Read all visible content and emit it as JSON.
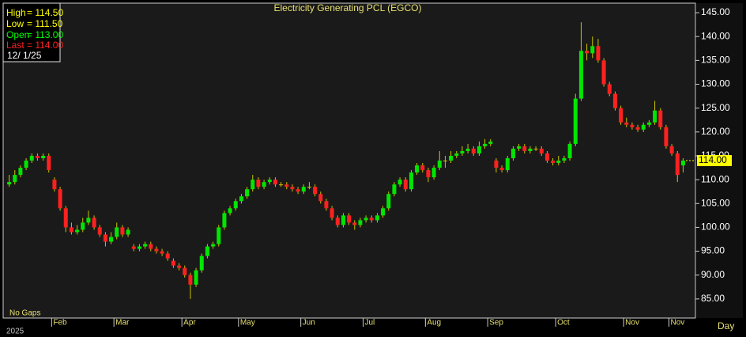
{
  "chart_data": {
    "type": "candlestick",
    "title": "Electricity Generating PCL (EGCO)",
    "info": {
      "high": {
        "label": "High",
        "value": "= 114.50"
      },
      "low": {
        "label": "Low",
        "value": "= 111.50"
      },
      "open": {
        "label": "Open",
        "value": "= 113.00"
      },
      "last": {
        "label": "Last",
        "value": "= 114.00"
      },
      "date": "12/  1/25"
    },
    "gaps_note": "No Gaps",
    "year": "2025",
    "period": "Day",
    "last_label": "114.00",
    "ylim": [
      81,
      147
    ],
    "yticks": [
      {
        "value": 85,
        "label": "85.00"
      },
      {
        "value": 90,
        "label": "90.00"
      },
      {
        "value": 95,
        "label": "95.00"
      },
      {
        "value": 100,
        "label": "100.00"
      },
      {
        "value": 105,
        "label": "105.00"
      },
      {
        "value": 110,
        "label": "110.00"
      },
      {
        "value": 115,
        "label": "115.00"
      },
      {
        "value": 120,
        "label": "120.00"
      },
      {
        "value": 125,
        "label": "125.00"
      },
      {
        "value": 130,
        "label": "130.00"
      },
      {
        "value": 135,
        "label": "135.00"
      },
      {
        "value": 140,
        "label": "140.00"
      },
      {
        "value": 145,
        "label": "145.00"
      }
    ],
    "xticks": [
      {
        "value": 8,
        "label": "Feb"
      },
      {
        "value": 19,
        "label": "Mar"
      },
      {
        "value": 31,
        "label": "Apr"
      },
      {
        "value": 41,
        "label": "May"
      },
      {
        "value": 52,
        "label": "Jun"
      },
      {
        "value": 63,
        "label": "Jul"
      },
      {
        "value": 74,
        "label": "Aug"
      },
      {
        "value": 85,
        "label": "Sep"
      },
      {
        "value": 97,
        "label": "Oct"
      },
      {
        "value": 109,
        "label": "Nov"
      },
      {
        "value": 117,
        "label": "Nov"
      }
    ],
    "up_color": "#00e600",
    "down_color": "#ff2020",
    "wick_color": "#c8c400",
    "candles": [
      [
        109,
        111,
        108.5,
        109.5
      ],
      [
        109.5,
        112,
        109,
        111
      ],
      [
        111,
        113,
        110.5,
        112.5
      ],
      [
        112.5,
        114.5,
        112,
        114
      ],
      [
        114,
        115.5,
        113.5,
        115
      ],
      [
        115,
        115.5,
        114,
        114.5
      ],
      [
        114.5,
        115.5,
        114,
        115
      ],
      [
        115,
        115.5,
        111.5,
        112
      ],
      [
        110,
        110.5,
        107.5,
        108
      ],
      [
        108,
        108.5,
        103.5,
        104
      ],
      [
        104,
        104.5,
        99,
        100
      ],
      [
        100,
        101,
        98.5,
        99
      ],
      [
        99,
        100.5,
        98.5,
        99.5
      ],
      [
        99.5,
        102,
        99,
        101
      ],
      [
        101,
        103.5,
        100.5,
        102
      ],
      [
        102,
        102.5,
        99.5,
        100
      ],
      [
        100,
        100.5,
        98,
        98.5
      ],
      [
        98.5,
        99,
        96,
        97
      ],
      [
        97,
        99,
        96.5,
        98
      ],
      [
        98,
        101,
        97.5,
        100
      ],
      [
        100,
        100.5,
        98,
        98.5
      ],
      [
        98.5,
        100,
        98,
        99.5
      ],
      [
        96,
        96.5,
        95,
        95.5
      ],
      [
        95.5,
        96.5,
        95,
        96
      ],
      [
        96,
        97,
        95.5,
        96.5
      ],
      [
        96.5,
        97,
        95,
        95.5
      ],
      [
        95.5,
        96,
        94.5,
        95
      ],
      [
        95,
        95.5,
        94,
        94.5
      ],
      [
        94.5,
        95,
        93,
        93.5
      ],
      [
        93,
        93.5,
        91.5,
        92
      ],
      [
        92,
        92.5,
        91,
        91.5
      ],
      [
        91.5,
        92,
        89.5,
        90
      ],
      [
        90,
        90.5,
        85,
        88
      ],
      [
        88,
        91.5,
        87.5,
        91
      ],
      [
        91,
        94.5,
        90.5,
        94
      ],
      [
        94,
        96.5,
        93.5,
        96
      ],
      [
        96,
        97,
        95.5,
        96.5
      ],
      [
        96.5,
        100.5,
        96,
        100
      ],
      [
        100,
        103.5,
        99.5,
        103
      ],
      [
        103,
        104.5,
        102.5,
        104
      ],
      [
        104,
        106,
        103.5,
        105.5
      ],
      [
        105.5,
        107,
        105,
        106.5
      ],
      [
        106.5,
        108.5,
        106,
        108
      ],
      [
        108,
        111,
        107.5,
        110
      ],
      [
        110,
        110.5,
        108,
        108.5
      ],
      [
        108.5,
        110,
        108,
        109.5
      ],
      [
        109.5,
        110.5,
        109,
        110
      ],
      [
        110,
        110.5,
        108.5,
        109
      ],
      [
        109,
        109.5,
        108.5,
        109
      ],
      [
        109,
        109.5,
        108,
        108.5
      ],
      [
        108.5,
        109,
        107.5,
        108
      ],
      [
        108,
        108.5,
        107,
        107.5
      ],
      [
        107.5,
        109,
        107,
        108.5
      ],
      [
        108.5,
        109.5,
        108,
        108.5
      ],
      [
        108.5,
        109,
        106.5,
        107
      ],
      [
        107,
        107.5,
        105,
        105.5
      ],
      [
        105.5,
        106,
        103.5,
        104
      ],
      [
        104,
        104.5,
        101.5,
        102
      ],
      [
        102,
        102.5,
        100,
        100.5
      ],
      [
        100.5,
        103,
        100,
        102.5
      ],
      [
        102.5,
        103,
        100.5,
        101
      ],
      [
        101,
        101.5,
        99.5,
        100.5
      ],
      [
        100.5,
        102,
        100,
        101.5
      ],
      [
        101.5,
        102.5,
        101,
        102
      ],
      [
        102,
        102.5,
        101,
        101.5
      ],
      [
        101.5,
        103,
        101,
        102.5
      ],
      [
        102.5,
        104.5,
        102,
        104
      ],
      [
        104,
        107.5,
        103.5,
        107
      ],
      [
        107,
        109.5,
        106.5,
        109
      ],
      [
        109,
        110.5,
        108.5,
        110
      ],
      [
        110,
        110.5,
        107.5,
        108
      ],
      [
        108,
        112,
        107.5,
        111.5
      ],
      [
        111.5,
        113.5,
        111,
        113
      ],
      [
        113,
        113.5,
        111.5,
        112
      ],
      [
        112,
        112.5,
        109.5,
        110.5
      ],
      [
        110.5,
        113,
        110,
        112.5
      ],
      [
        112.5,
        116,
        112,
        114
      ],
      [
        114,
        115,
        112.5,
        114
      ],
      [
        114,
        116,
        113.5,
        115
      ],
      [
        115,
        116,
        114.5,
        115.5
      ],
      [
        115.5,
        117,
        115,
        116
      ],
      [
        116,
        117.5,
        115.5,
        116.5
      ],
      [
        116.5,
        117,
        115,
        115.5
      ],
      [
        115.5,
        118,
        115,
        117
      ],
      [
        117,
        118.5,
        116.5,
        117.5
      ],
      [
        117.5,
        118.5,
        117,
        118
      ],
      [
        114,
        114.5,
        111.5,
        112.5
      ],
      [
        112.5,
        113,
        111.5,
        112
      ],
      [
        112,
        115,
        111.5,
        114.5
      ],
      [
        114.5,
        117,
        114,
        116.5
      ],
      [
        116.5,
        117.5,
        116,
        117
      ],
      [
        117,
        117.5,
        115.5,
        116
      ],
      [
        116,
        117,
        115.5,
        116.5
      ],
      [
        116.5,
        117,
        116,
        116.5
      ],
      [
        116.5,
        117,
        115,
        115.5
      ],
      [
        115.5,
        116,
        113.5,
        114
      ],
      [
        114,
        114.5,
        113,
        113.5
      ],
      [
        113.5,
        115,
        113,
        114
      ],
      [
        114,
        115,
        113.5,
        114.5
      ],
      [
        114.5,
        118,
        114,
        117.5
      ],
      [
        117.5,
        128,
        117,
        127
      ],
      [
        127,
        143,
        126.5,
        137
      ],
      [
        137,
        138.5,
        135,
        136.5
      ],
      [
        136.5,
        140,
        135.5,
        138
      ],
      [
        138,
        139.5,
        134.5,
        135
      ],
      [
        135,
        135.5,
        129.5,
        130
      ],
      [
        130,
        130.5,
        127.5,
        128
      ],
      [
        128,
        128.5,
        124.5,
        125
      ],
      [
        125,
        125.5,
        121.5,
        122
      ],
      [
        122,
        123,
        121,
        121.5
      ],
      [
        121.5,
        122,
        120.5,
        121
      ],
      [
        121,
        121.5,
        120,
        120.5
      ],
      [
        120.5,
        122,
        120,
        121.5
      ],
      [
        121.5,
        122.5,
        121,
        122
      ],
      [
        122,
        126.5,
        121.5,
        124.5
      ],
      [
        124.5,
        125,
        120.5,
        121
      ],
      [
        121,
        121.5,
        116.5,
        117
      ],
      [
        117,
        117.5,
        115,
        115.5
      ],
      [
        115.5,
        116,
        109.5,
        111
      ],
      [
        113,
        114.5,
        111.5,
        114
      ]
    ]
  }
}
